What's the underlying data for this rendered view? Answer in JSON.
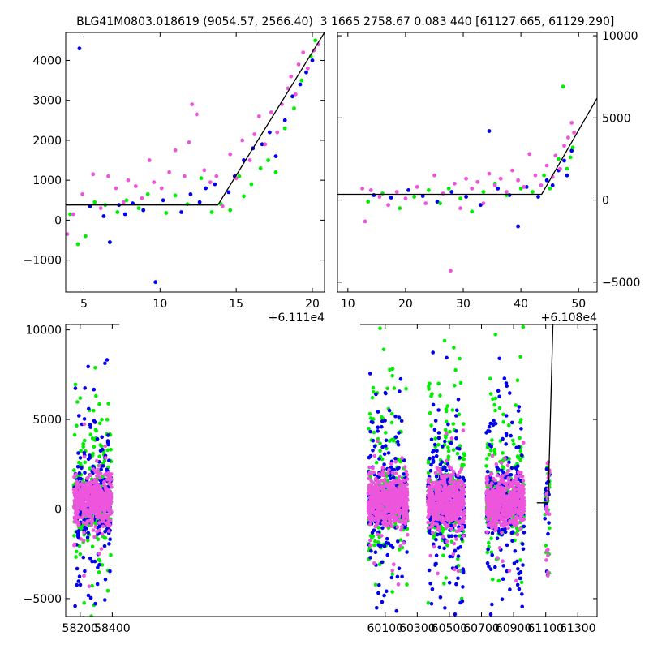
{
  "titles": {
    "left": "BLG41M0803.018619 (9054.57, 2566.40)",
    "right": "3 1665 2758.67 0.083 440 [61127.665, 61129.290]"
  },
  "colors": {
    "blue": "#0000ee",
    "green": "#00ee00",
    "pink": "#ee55dd",
    "line": "#000000"
  },
  "chart_data": [
    {
      "id": "top_left",
      "type": "scatter",
      "title": "BLG41M0803.018619 (9054.57, 2566.40)",
      "xlim": [
        3.8,
        20.8
      ],
      "ylim": [
        -1800,
        4700
      ],
      "x_offset_label": "+6.111e4",
      "xticks": [
        5,
        10,
        15,
        20
      ],
      "xtick_labels": [
        "5",
        "10",
        "15",
        "20"
      ],
      "yticks": [
        -1000,
        0,
        1000,
        2000,
        3000,
        4000
      ],
      "ytick_labels": [
        "−1000",
        "0",
        "1000",
        "2000",
        "3000",
        "4000"
      ],
      "model_line": [
        [
          3.8,
          380
        ],
        [
          13.8,
          380
        ],
        [
          20.8,
          4700
        ]
      ],
      "series": [
        {
          "color": "blue",
          "points": [
            [
              4.7,
              4300
            ],
            [
              5.4,
              350
            ],
            [
              6.3,
              100
            ],
            [
              6.7,
              -550
            ],
            [
              7.3,
              380
            ],
            [
              7.7,
              150
            ],
            [
              8.2,
              420
            ],
            [
              8.9,
              250
            ],
            [
              9.7,
              -1550
            ],
            [
              10.2,
              500
            ],
            [
              11.4,
              200
            ],
            [
              12.0,
              650
            ],
            [
              12.6,
              450
            ],
            [
              13.0,
              800
            ],
            [
              13.6,
              900
            ],
            [
              14.5,
              700
            ],
            [
              14.9,
              1100
            ],
            [
              15.5,
              1500
            ],
            [
              16.1,
              1800
            ],
            [
              16.7,
              1900
            ],
            [
              17.2,
              2200
            ],
            [
              17.6,
              1600
            ],
            [
              18.2,
              2500
            ],
            [
              18.7,
              3100
            ],
            [
              19.2,
              3400
            ],
            [
              19.6,
              3700
            ],
            [
              20.0,
              4000
            ]
          ]
        },
        {
          "color": "green",
          "points": [
            [
              4.1,
              150
            ],
            [
              4.6,
              -600
            ],
            [
              5.1,
              -400
            ],
            [
              5.7,
              450
            ],
            [
              6.4,
              380
            ],
            [
              7.2,
              200
            ],
            [
              7.8,
              500
            ],
            [
              8.6,
              300
            ],
            [
              9.2,
              650
            ],
            [
              10.4,
              180
            ],
            [
              11.0,
              620
            ],
            [
              11.8,
              400
            ],
            [
              12.7,
              1050
            ],
            [
              13.4,
              200
            ],
            [
              14.0,
              400
            ],
            [
              14.6,
              250
            ],
            [
              15.2,
              1100
            ],
            [
              15.5,
              600
            ],
            [
              16.0,
              900
            ],
            [
              16.6,
              1300
            ],
            [
              17.1,
              1500
            ],
            [
              17.6,
              1200
            ],
            [
              18.2,
              2300
            ],
            [
              18.8,
              2800
            ],
            [
              19.3,
              3500
            ],
            [
              19.9,
              4100
            ],
            [
              20.2,
              4500
            ]
          ]
        },
        {
          "color": "pink",
          "points": [
            [
              3.9,
              -350
            ],
            [
              4.3,
              150
            ],
            [
              4.9,
              650
            ],
            [
              5.6,
              1150
            ],
            [
              6.1,
              300
            ],
            [
              6.6,
              1100
            ],
            [
              7.1,
              800
            ],
            [
              7.6,
              450
            ],
            [
              7.9,
              1000
            ],
            [
              8.4,
              850
            ],
            [
              8.8,
              550
            ],
            [
              9.3,
              1500
            ],
            [
              9.6,
              950
            ],
            [
              10.1,
              800
            ],
            [
              10.6,
              1200
            ],
            [
              11.0,
              1750
            ],
            [
              11.6,
              1100
            ],
            [
              11.9,
              1950
            ],
            [
              12.1,
              2900
            ],
            [
              12.4,
              2650
            ],
            [
              12.9,
              1250
            ],
            [
              13.3,
              950
            ],
            [
              13.7,
              1100
            ],
            [
              14.1,
              350
            ],
            [
              14.6,
              1650
            ],
            [
              15.0,
              1050
            ],
            [
              15.4,
              2000
            ],
            [
              15.9,
              1500
            ],
            [
              16.2,
              2150
            ],
            [
              16.5,
              2600
            ],
            [
              16.9,
              1900
            ],
            [
              17.3,
              2700
            ],
            [
              17.7,
              2200
            ],
            [
              18.0,
              2900
            ],
            [
              18.4,
              3300
            ],
            [
              18.6,
              3600
            ],
            [
              18.9,
              3150
            ],
            [
              19.1,
              3900
            ],
            [
              19.4,
              4200
            ],
            [
              19.7,
              3800
            ],
            [
              20.1,
              4250
            ],
            [
              20.4,
              4400
            ]
          ]
        }
      ]
    },
    {
      "id": "top_right",
      "type": "scatter",
      "title": "3 1665 2758.67 0.083 440 [61127.665, 61129.290]",
      "xlim": [
        8.2,
        53.2
      ],
      "ylim": [
        -5600,
        10200
      ],
      "x_offset_label": "+6.108e4",
      "xticks": [
        10,
        20,
        30,
        40,
        50
      ],
      "xtick_labels": [
        "10",
        "20",
        "30",
        "40",
        "50"
      ],
      "yticks": [
        -5000,
        0,
        5000,
        10000
      ],
      "ytick_labels": [
        "−5000",
        "0",
        "5000",
        "10000"
      ],
      "model_line": [
        [
          8.2,
          350
        ],
        [
          43.6,
          350
        ],
        [
          53.2,
          6200
        ]
      ],
      "series": [
        {
          "color": "blue",
          "points": [
            [
              14.5,
              300
            ],
            [
              17.5,
              150
            ],
            [
              20.5,
              600
            ],
            [
              23.0,
              250
            ],
            [
              25.5,
              -100
            ],
            [
              28.0,
              500
            ],
            [
              30.5,
              200
            ],
            [
              33.0,
              -300
            ],
            [
              34.5,
              4200
            ],
            [
              36.0,
              700
            ],
            [
              38.0,
              300
            ],
            [
              39.5,
              -1600
            ],
            [
              41.0,
              800
            ],
            [
              43.0,
              200
            ],
            [
              44.5,
              1200
            ],
            [
              45.5,
              900
            ],
            [
              46.5,
              1800
            ],
            [
              47.5,
              2400
            ],
            [
              48.0,
              1500
            ],
            [
              48.8,
              3000
            ]
          ]
        },
        {
          "color": "green",
          "points": [
            [
              13.5,
              -100
            ],
            [
              16.0,
              400
            ],
            [
              19.0,
              -500
            ],
            [
              21.5,
              200
            ],
            [
              24.0,
              600
            ],
            [
              26.0,
              -200
            ],
            [
              27.5,
              700
            ],
            [
              29.5,
              100
            ],
            [
              31.5,
              -700
            ],
            [
              33.5,
              500
            ],
            [
              35.5,
              1000
            ],
            [
              37.5,
              300
            ],
            [
              40.0,
              700
            ],
            [
              42.0,
              500
            ],
            [
              44.0,
              1500
            ],
            [
              45.0,
              700
            ],
            [
              46.5,
              2500
            ],
            [
              47.3,
              6900
            ],
            [
              48.0,
              1900
            ],
            [
              48.6,
              2600
            ],
            [
              49.0,
              3200
            ]
          ]
        },
        {
          "color": "pink",
          "points": [
            [
              12.5,
              700
            ],
            [
              13.0,
              -1300
            ],
            [
              14.0,
              600
            ],
            [
              15.5,
              200
            ],
            [
              17.0,
              -300
            ],
            [
              18.5,
              500
            ],
            [
              20.0,
              100
            ],
            [
              22.0,
              800
            ],
            [
              23.5,
              -200
            ],
            [
              25.0,
              1500
            ],
            [
              26.5,
              400
            ],
            [
              27.8,
              -4300
            ],
            [
              28.5,
              1000
            ],
            [
              29.5,
              -500
            ],
            [
              30.5,
              1300
            ],
            [
              31.5,
              700
            ],
            [
              32.5,
              1100
            ],
            [
              33.5,
              -200
            ],
            [
              34.5,
              1600
            ],
            [
              35.5,
              900
            ],
            [
              36.5,
              1300
            ],
            [
              37.5,
              500
            ],
            [
              38.5,
              1800
            ],
            [
              39.5,
              1200
            ],
            [
              40.5,
              800
            ],
            [
              41.5,
              2800
            ],
            [
              42.5,
              1500
            ],
            [
              43.5,
              900
            ],
            [
              44.5,
              2100
            ],
            [
              45.5,
              1400
            ],
            [
              46.0,
              2700
            ],
            [
              46.8,
              1900
            ],
            [
              47.5,
              3300
            ],
            [
              48.2,
              3800
            ],
            [
              48.8,
              4700
            ],
            [
              49.2,
              4100
            ]
          ]
        }
      ]
    },
    {
      "id": "bottom",
      "type": "scatter",
      "xlim": [
        58110,
        61420
      ],
      "ylim": [
        -6000,
        10300
      ],
      "xticks": [
        58200,
        58400,
        60100,
        60300,
        60500,
        60700,
        60900,
        61100,
        61300
      ],
      "xtick_labels": [
        "58200",
        "58400",
        "60100",
        "60300",
        "60500",
        "60700",
        "60900",
        "61100",
        "61300"
      ],
      "yticks": [
        -5000,
        0,
        5000,
        10000
      ],
      "ytick_labels": [
        "−5000",
        "0",
        "5000",
        "10000"
      ],
      "seasons": [
        [
          58160,
          58395
        ],
        [
          59995,
          60240
        ],
        [
          60365,
          60595
        ],
        [
          60730,
          60965
        ],
        [
          61095,
          61125
        ]
      ],
      "model_line": [
        [
          61045,
          350
        ],
        [
          61115,
          350
        ],
        [
          61145,
          10300
        ]
      ]
    }
  ]
}
